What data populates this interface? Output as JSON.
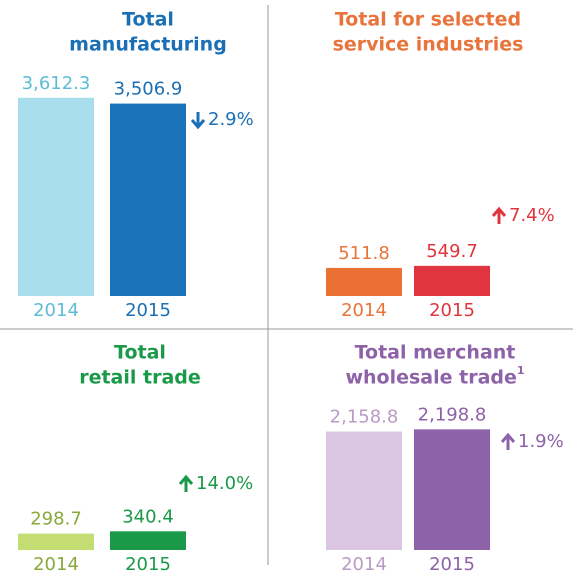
{
  "chart_data": [
    {
      "type": "bar",
      "title_lines": [
        "Total",
        "manufacturing"
      ],
      "title_color": "#1a6fb5",
      "categories": [
        "2014",
        "2015"
      ],
      "values": [
        3612.3,
        3506.9
      ],
      "value_labels": [
        "3,612.3",
        "3,506.9"
      ],
      "colors": [
        "#a8dded",
        "#1a73b8"
      ],
      "label_colors": [
        "#5bbcd6",
        "#1a6fb5"
      ],
      "annotation": "2.9%",
      "annotation_arrow": "down",
      "annotation_color": "#1a6fb5",
      "ylim": [
        0,
        3700
      ]
    },
    {
      "type": "bar",
      "title_lines": [
        "Total for selected",
        "service industries"
      ],
      "title_color": "#e8743b",
      "categories": [
        "2014",
        "2015"
      ],
      "values": [
        511.8,
        549.7
      ],
      "value_labels": [
        "511.8",
        "549.7"
      ],
      "colors": [
        "#ea7034",
        "#e0353e"
      ],
      "label_colors": [
        "#e8743b",
        "#e0353e"
      ],
      "annotation": "7.4%",
      "annotation_arrow": "up",
      "annotation_color": "#e0353e",
      "ylim": [
        0,
        3700
      ]
    },
    {
      "type": "bar",
      "title_lines": [
        "Total",
        "retail trade"
      ],
      "title_color": "#1a9a48",
      "categories": [
        "2014",
        "2015"
      ],
      "values": [
        298.7,
        340.4
      ],
      "value_labels": [
        "298.7",
        "340.4"
      ],
      "colors": [
        "#c4dd72",
        "#1a9a48"
      ],
      "label_colors": [
        "#8aa83a",
        "#1a9a48"
      ],
      "annotation": "14.0%",
      "annotation_arrow": "up",
      "annotation_color": "#1a9a48",
      "ylim": [
        0,
        3700
      ]
    },
    {
      "type": "bar",
      "title_lines": [
        "Total merchant",
        "wholesale trade"
      ],
      "title_footnote": "1",
      "title_color": "#8e62a8",
      "categories": [
        "2014",
        "2015"
      ],
      "values": [
        2158.8,
        2198.8
      ],
      "value_labels": [
        "2,158.8",
        "2,198.8"
      ],
      "colors": [
        "#dac5e2",
        "#8e62a8"
      ],
      "label_colors": [
        "#b89bc6",
        "#8e62a8"
      ],
      "annotation": "1.9%",
      "annotation_arrow": "up",
      "annotation_color": "#8e62a8",
      "ylim": [
        0,
        3700
      ]
    }
  ]
}
